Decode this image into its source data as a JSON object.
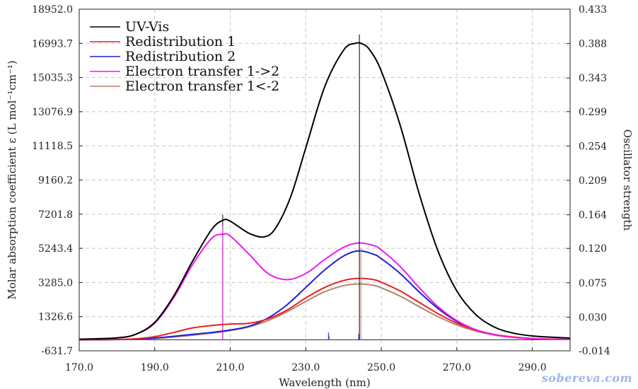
{
  "chart_data": {
    "type": "line",
    "xlabel": "Wavelength (nm)",
    "ylabel": "Molar absorption coefficient  ε (L mol⁻¹cm⁻¹)",
    "y2label": "Oscillator strength",
    "xlim": [
      170,
      300
    ],
    "ylim": [
      -631.7,
      18952.0
    ],
    "y2lim": [
      -0.014,
      0.433
    ],
    "x_ticks": [
      "170.0",
      "190.0",
      "210.0",
      "230.0",
      "250.0",
      "270.0",
      "290.0"
    ],
    "y_ticks": [
      "-631.7",
      "1326.6",
      "3285.0",
      "5243.4",
      "7201.8",
      "9160.2",
      "11118.5",
      "13076.9",
      "15035.3",
      "16993.7",
      "18952.0"
    ],
    "y2_ticks": [
      "-0.014",
      "0.030",
      "0.075",
      "0.120",
      "0.164",
      "0.209",
      "0.254",
      "0.299",
      "0.343",
      "0.388",
      "0.433"
    ],
    "grid": true,
    "legend_position": "top-left",
    "series": [
      {
        "name": "UV-Vis",
        "color": "#000000",
        "x": [
          170,
          180,
          185,
          190,
          195,
          200,
          205,
          208,
          210,
          215,
          219,
          222,
          226,
          230,
          235,
          240,
          243,
          245,
          247,
          250,
          255,
          260,
          265,
          270,
          275,
          280,
          285,
          290,
          295,
          300
        ],
        "values": [
          30,
          110,
          320,
          1000,
          2500,
          4500,
          6300,
          6850,
          6800,
          6100,
          5900,
          6400,
          8200,
          11000,
          14500,
          16600,
          16990,
          16960,
          16600,
          15400,
          12300,
          8400,
          5100,
          2800,
          1450,
          720,
          380,
          220,
          150,
          100
        ]
      },
      {
        "name": "Redistribution 1",
        "color": "#e8211f",
        "x": [
          170,
          180,
          185,
          190,
          195,
          200,
          205,
          210,
          215,
          220,
          225,
          230,
          235,
          240,
          244,
          248,
          250,
          255,
          260,
          265,
          270,
          275,
          280,
          285,
          290,
          295,
          300
        ],
        "values": [
          0,
          20,
          60,
          180,
          420,
          680,
          820,
          900,
          950,
          1200,
          1700,
          2400,
          3000,
          3400,
          3520,
          3450,
          3300,
          2800,
          2150,
          1500,
          950,
          560,
          300,
          160,
          80,
          40,
          20
        ]
      },
      {
        "name": "Redistribution 2",
        "color": "#1f1fd6",
        "x": [
          170,
          180,
          185,
          190,
          195,
          200,
          205,
          210,
          215,
          220,
          225,
          230,
          235,
          240,
          244,
          248,
          250,
          255,
          260,
          265,
          270,
          275,
          280,
          285,
          290,
          295,
          300
        ],
        "values": [
          0,
          10,
          40,
          100,
          200,
          310,
          420,
          560,
          780,
          1250,
          2000,
          3000,
          4000,
          4800,
          5100,
          4900,
          4650,
          3800,
          2750,
          1800,
          1050,
          570,
          290,
          140,
          65,
          30,
          15
        ]
      },
      {
        "name": "Electron transfer 1->2",
        "color": "#ee1bee",
        "x": [
          170,
          180,
          185,
          190,
          195,
          200,
          205,
          208,
          210,
          215,
          220,
          225,
          230,
          235,
          240,
          244,
          248,
          250,
          255,
          260,
          265,
          270,
          275,
          280,
          285,
          290,
          295,
          300
        ],
        "values": [
          30,
          110,
          320,
          950,
          2400,
          4300,
          5800,
          6050,
          5950,
          4900,
          3800,
          3450,
          3800,
          4600,
          5300,
          5550,
          5400,
          5150,
          4200,
          3000,
          1900,
          1100,
          580,
          290,
          140,
          65,
          30,
          15
        ]
      },
      {
        "name": "Electron transfer 1<-2",
        "color": "#b5826a",
        "x": [
          170,
          180,
          185,
          190,
          195,
          200,
          205,
          210,
          215,
          220,
          225,
          230,
          235,
          240,
          244,
          248,
          250,
          255,
          260,
          265,
          270,
          275,
          280,
          285,
          290,
          295,
          300
        ],
        "values": [
          0,
          10,
          30,
          80,
          160,
          260,
          380,
          530,
          740,
          1100,
          1600,
          2200,
          2750,
          3100,
          3200,
          3120,
          2980,
          2500,
          1900,
          1330,
          850,
          500,
          270,
          140,
          70,
          35,
          17
        ]
      }
    ],
    "stick_lines": [
      {
        "x": 208,
        "f": 0.164,
        "color": "#000000"
      },
      {
        "x": 208,
        "f": 0.15,
        "color": "#ee1bee"
      },
      {
        "x": 236,
        "f": 0.01,
        "color": "#1f1fd6"
      },
      {
        "x": 236.2,
        "f": 0.006,
        "color": "#ee1bee"
      },
      {
        "x": 244.2,
        "f": 0.4,
        "color": "#000000"
      },
      {
        "x": 244,
        "f": 0.008,
        "color": "#1f1fd6"
      },
      {
        "x": 244.6,
        "f": 0.12,
        "color": "#b5826a"
      }
    ]
  },
  "watermark": "sobereva.com"
}
